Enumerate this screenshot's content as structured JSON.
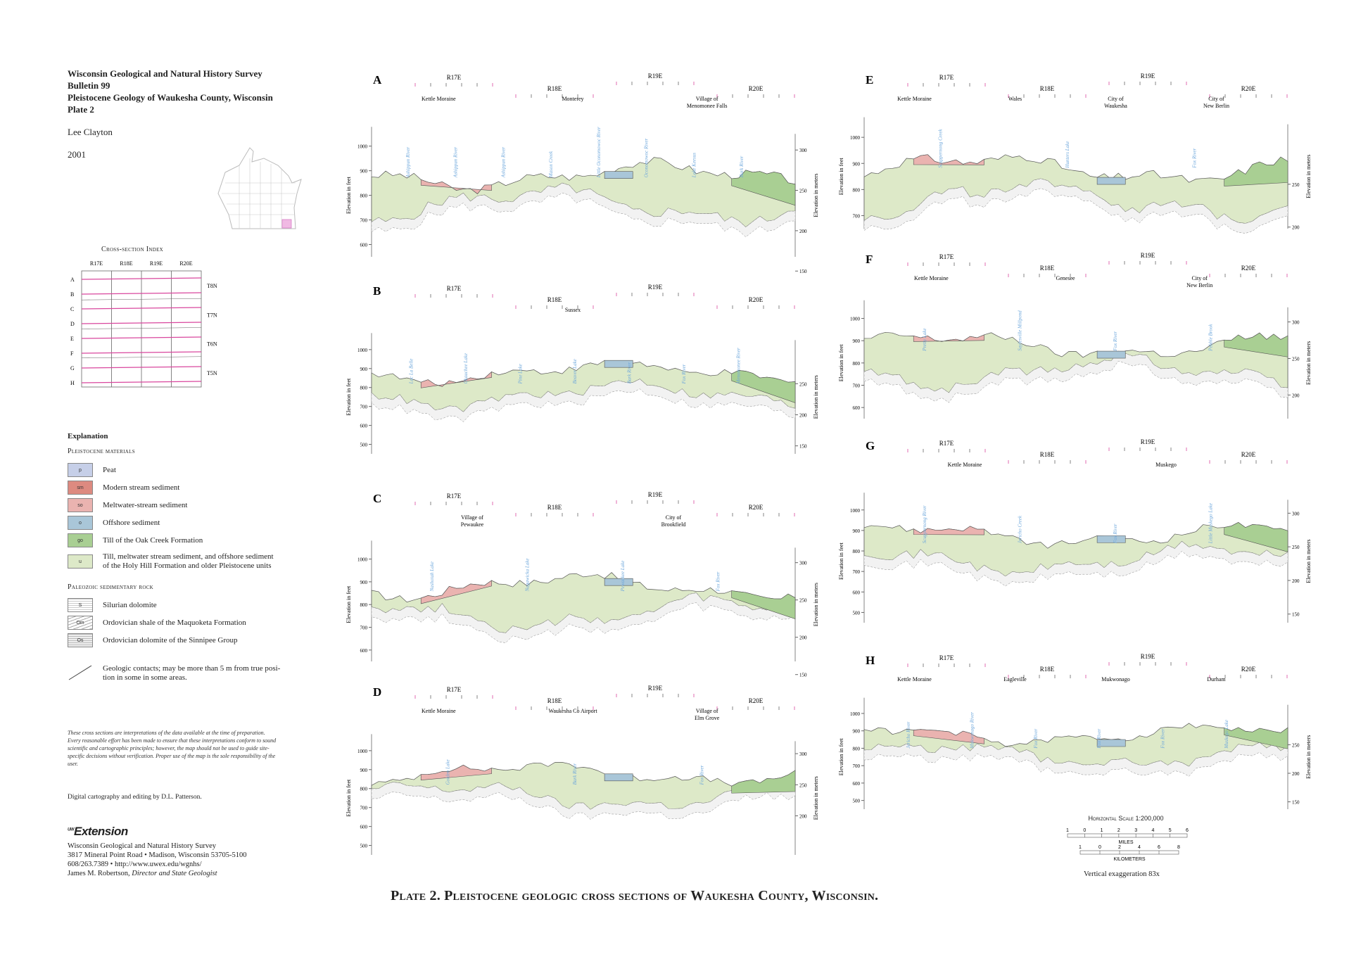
{
  "header": {
    "org": "Wisconsin Geological and Natural History Survey",
    "bulletin": "Bulletin 99",
    "title": "Pleistocene Geology of Waukesha County, Wisconsin",
    "plate": "Plate 2",
    "author": "Lee Clayton",
    "year": "2001"
  },
  "index": {
    "title": "Cross-section Index",
    "ranges": [
      "R17E",
      "R18E",
      "R19E",
      "R20E"
    ],
    "townships": [
      "T8N",
      "T7N",
      "T6N",
      "T5N"
    ],
    "sections": [
      "A",
      "B",
      "C",
      "D",
      "E",
      "F",
      "G",
      "H"
    ]
  },
  "explanation": {
    "title": "Explanation",
    "pleistocene_heading": "Pleistocene materials",
    "pleistocene": [
      {
        "code": "p",
        "label": "Peat",
        "color": "#c6cfe8"
      },
      {
        "code": "sm",
        "label": "Modern stream sediment",
        "color": "#dd8a80"
      },
      {
        "code": "so",
        "label": "Meltwater-stream sediment",
        "color": "#eab3b0"
      },
      {
        "code": "o",
        "label": "Offshore sediment",
        "color": "#a9c6d8"
      },
      {
        "code": "go",
        "label": "Till of the Oak Creek Formation",
        "color": "#a9cf93"
      },
      {
        "code": "u",
        "label": "Till, meltwater stream sediment, and offshore sediment",
        "label2": "of the Holy Hill Formation and older Pleistocene units",
        "color": "#dde9c8"
      }
    ],
    "paleozoic_heading": "Paleozoic sedimentary rock",
    "paleozoic": [
      {
        "code": "S",
        "label": "Silurian dolomite"
      },
      {
        "code": "Om",
        "label": "Ordovician shale of the Maquoketa Formation"
      },
      {
        "code": "Os",
        "label": "Ordovician dolomite of the Sinnipee Group"
      }
    ],
    "contacts": "Geologic contacts; may be more than 5 m from true posi-",
    "contacts2": "tion in some in some areas."
  },
  "disclaimer": "These cross sections are interpretations of the data available at the time of preparation. Every reasonable effort has been made to ensure that these interpretations conform to sound scientific and cartographic principles; however, the map should not be used to guide site-specific decisions without verification. Proper use of the map is the sole responsibility of the user.",
  "credit": "Digital cartography and editing by D.L. Patterson.",
  "publisher": {
    "logo": "Extension",
    "logo_prefix": "UW",
    "name": "Wisconsin Geological and Natural History Survey",
    "address": "3817 Mineral Point Road • Madison, Wisconsin 53705-5100",
    "contact": "608/263.7389 • http://www.uwex.edu/wgnhs/",
    "director": "James M. Robertson,",
    "director_title": "Director and State Geologist"
  },
  "axis_labels": {
    "feet": "Elevation in feet",
    "meters": "Elevation in meters"
  },
  "sections": [
    {
      "letter": "A",
      "ft_ticks": [
        1000,
        900,
        800,
        700,
        600
      ],
      "m_ticks": [
        300,
        250,
        200,
        150
      ],
      "ranges": [
        "R17E",
        "R18E",
        "R19E",
        "R20E"
      ],
      "places": [
        "Kettle Moraine",
        "Monterey",
        "Village of",
        "Menomonee Falls"
      ],
      "water": [
        "Ashippun River",
        "Ashippun River",
        "Ashippun River",
        "Mason Creek",
        "Little Oconomowoc River",
        "Oconomowoc River",
        "Lake Keesus",
        "Bark River"
      ]
    },
    {
      "letter": "B",
      "ft_ticks": [
        1000,
        900,
        800,
        700,
        600,
        500
      ],
      "m_ticks": [
        250,
        200,
        150
      ],
      "ranges": [
        "R17E",
        "R18E",
        "R19E",
        "R20E"
      ],
      "places": [
        "Sussex"
      ],
      "water": [
        "Lac La Belle",
        "Okauchee Lake",
        "Pine Lake",
        "Beaver Lake",
        "Bark River",
        "Fox River",
        "Menomonee River"
      ]
    },
    {
      "letter": "C",
      "ft_ticks": [
        1000,
        900,
        800,
        700,
        600
      ],
      "m_ticks": [
        300,
        250,
        200,
        150
      ],
      "ranges": [
        "R17E",
        "R18E",
        "R19E",
        "R20E"
      ],
      "places": [
        "Village of",
        "Pewaukee",
        "City of",
        "Brookfield"
      ],
      "water": [
        "Nashotah Lake",
        "Nagawicka Lake",
        "Pewaukee Lake",
        "Fox River"
      ]
    },
    {
      "letter": "D",
      "ft_ticks": [
        1000,
        900,
        800,
        700,
        600,
        500
      ],
      "m_ticks": [
        300,
        250,
        200
      ],
      "ranges": [
        "R17E",
        "R18E",
        "R19E",
        "R20E"
      ],
      "places": [
        "Kettle Moraine",
        "Waukesha Co Airport",
        "Village of",
        "Elm Grove"
      ],
      "water": [
        "Golden Lake",
        "Bark River",
        "Fox River"
      ]
    },
    {
      "letter": "E",
      "ft_ticks": [
        1000,
        900,
        800,
        700
      ],
      "m_ticks": [
        250,
        200
      ],
      "ranges": [
        "R17E",
        "R18E",
        "R19E",
        "R20E"
      ],
      "places": [
        "Kettle Moraine",
        "Wales",
        "City of",
        "Waukesha",
        "City of",
        "New Berlin"
      ],
      "water": [
        "Scuppernong Creek",
        "Hunters Lake",
        "Fox River"
      ]
    },
    {
      "letter": "F",
      "ft_ticks": [
        1000,
        900,
        800,
        700,
        600
      ],
      "m_ticks": [
        300,
        250,
        200
      ],
      "ranges": [
        "R17E",
        "R18E",
        "R19E",
        "R20E"
      ],
      "places": [
        "Kettle Moraine",
        "Genesee",
        "City of",
        "New Berlin"
      ],
      "water": [
        "Pretty Lake",
        "Saylesville Millpond",
        "Fox River",
        "Pebble Brook"
      ]
    },
    {
      "letter": "G",
      "ft_ticks": [
        1000,
        900,
        800,
        700,
        600,
        500
      ],
      "m_ticks": [
        300,
        250,
        200,
        150
      ],
      "ranges": [
        "R17E",
        "R18E",
        "R19E",
        "R20E"
      ],
      "places": [
        "Kettle Moraine",
        "Muskego"
      ],
      "water": [
        "Scuppernong River",
        "Jericho Creek",
        "Fox River",
        "Little Muskego Lake"
      ]
    },
    {
      "letter": "H",
      "ft_ticks": [
        1000,
        900,
        800,
        700,
        600,
        500
      ],
      "m_ticks": [
        250,
        200,
        150
      ],
      "ranges": [
        "R17E",
        "R18E",
        "R19E",
        "R20E"
      ],
      "places": [
        "Kettle Moraine",
        "Eagleville",
        "Mukwonago",
        "Durham"
      ],
      "water": [
        "Jericho River",
        "Mukwonago River",
        "Fox River",
        "Fox River",
        "Fox River",
        "Muskego Lake"
      ]
    }
  ],
  "scale": {
    "title": "Horizontal Scale 1:200,000",
    "miles_ticks": [
      "1",
      "0",
      "1",
      "2",
      "3",
      "4",
      "5",
      "6"
    ],
    "miles_label": "MILES",
    "km_ticks": [
      "1",
      "0",
      "2",
      "4",
      "6",
      "8"
    ],
    "km_label": "KILOMETERS",
    "vertical": "Vertical exaggeration 83x"
  },
  "plate_title": "Plate 2. Pleistocene geologic cross sections of Waukesha County, Wisconsin."
}
